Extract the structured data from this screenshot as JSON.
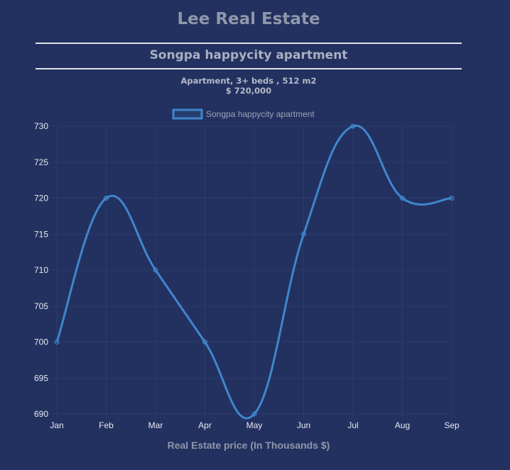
{
  "header": {
    "site_title": "Lee Real Estate",
    "listing_name": "Songpa happycity apartment",
    "details_line": "Apartment, 3+ beds , 512 m2",
    "price_line": "$ 720,000"
  },
  "colors": {
    "background": "#233160",
    "line": "#3f86cc",
    "grid": "#2d3b6e",
    "tick_text": "#e6e9f0",
    "axis_label": "#8f98aa"
  },
  "chart_data": {
    "type": "line",
    "categories": [
      "Jan",
      "Feb",
      "Mar",
      "Apr",
      "May",
      "Jun",
      "Jul",
      "Aug",
      "Sep"
    ],
    "series": [
      {
        "name": "Songpa happycity apartment",
        "values": [
          700,
          720,
          710,
          700,
          690,
          715,
          730,
          720,
          720
        ]
      }
    ],
    "ylim": [
      690,
      730
    ],
    "yticks": [
      690,
      695,
      700,
      705,
      710,
      715,
      720,
      725,
      730
    ],
    "xlabel": "Real Estate price (In Thousands $)",
    "ylabel": "",
    "legend": "top-center",
    "grid": true,
    "curve": "smooth"
  }
}
